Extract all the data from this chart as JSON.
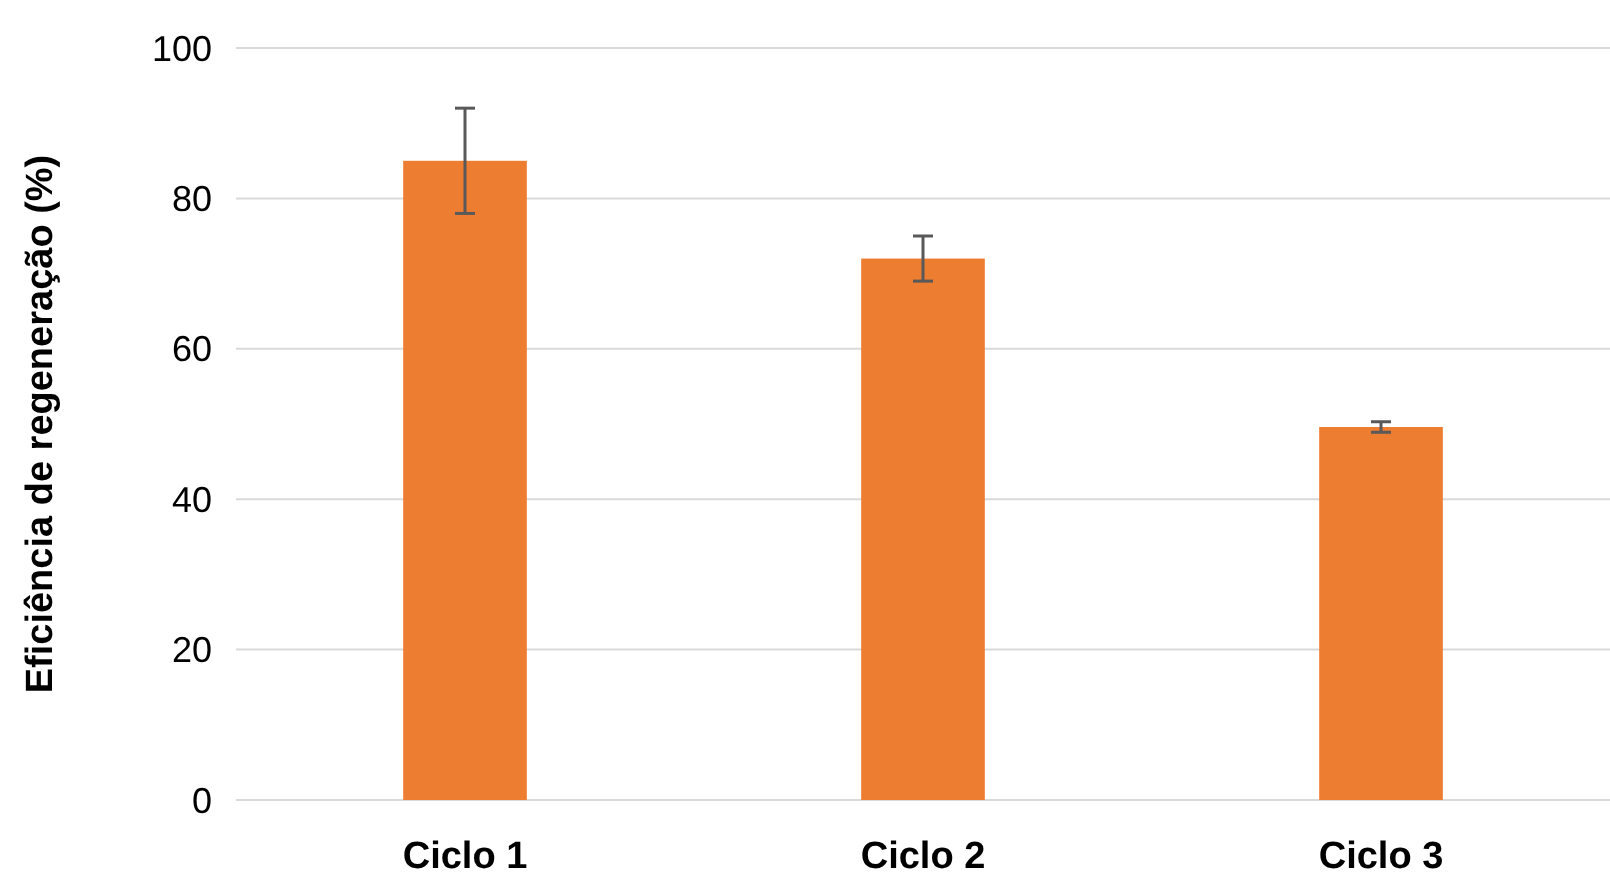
{
  "chart_data": {
    "type": "bar",
    "ylabel": "Eficiência de regeneração (%)",
    "categories": [
      "Ciclo 1",
      "Ciclo 2",
      "Ciclo 3"
    ],
    "values": [
      85,
      72,
      49.6
    ],
    "errors": [
      7,
      3,
      0.7
    ],
    "color": "#ed7d31",
    "ylim": [
      0,
      100
    ],
    "yticks": [
      0,
      20,
      40,
      60,
      80,
      100
    ],
    "grid": "y"
  }
}
